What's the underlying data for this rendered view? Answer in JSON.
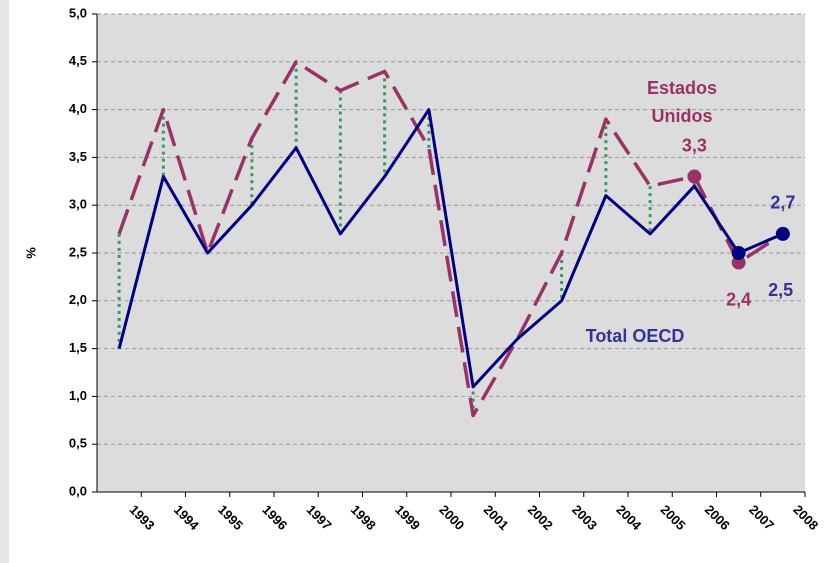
{
  "chart_data": {
    "type": "line",
    "y_label": "%",
    "categories": [
      "1993",
      "1994",
      "1995",
      "1996",
      "1997",
      "1998",
      "1999",
      "2000",
      "2001",
      "2002",
      "2003",
      "2004",
      "2005",
      "2006",
      "2007",
      "2008"
    ],
    "series": [
      {
        "name": "Estados Unidos",
        "color": "#993366",
        "dash": true,
        "values": [
          2.7,
          4.0,
          2.5,
          3.7,
          4.5,
          4.2,
          4.4,
          3.6,
          0.8,
          1.6,
          2.5,
          3.9,
          3.2,
          3.3,
          2.4,
          2.7
        ],
        "value_labels": [
          null,
          null,
          null,
          null,
          null,
          null,
          null,
          null,
          null,
          null,
          null,
          null,
          null,
          "3,3",
          "2,4",
          null
        ]
      },
      {
        "name": "Total OECD",
        "color": "#000080",
        "dash": false,
        "values": [
          1.5,
          3.3,
          2.5,
          3.0,
          3.6,
          2.7,
          3.3,
          4.0,
          1.1,
          1.6,
          2.0,
          3.1,
          2.7,
          3.2,
          2.5,
          2.7
        ],
        "value_labels": [
          null,
          null,
          null,
          null,
          null,
          null,
          null,
          null,
          null,
          null,
          null,
          null,
          null,
          null,
          "2,5",
          "2,7"
        ]
      }
    ],
    "ylim": [
      0,
      5
    ],
    "yticks": [
      {
        "value": 0,
        "label": "0,0"
      },
      {
        "value": 0.5,
        "label": "0,5"
      },
      {
        "value": 1,
        "label": "1,0"
      },
      {
        "value": 1.5,
        "label": "1,5"
      },
      {
        "value": 2,
        "label": "2,0"
      },
      {
        "value": 2.5,
        "label": "2,5"
      },
      {
        "value": 3,
        "label": "3,0"
      },
      {
        "value": 3.5,
        "label": "3,5"
      },
      {
        "value": 4,
        "label": "4,0"
      },
      {
        "value": 4.5,
        "label": "4,5"
      },
      {
        "value": 5,
        "label": "5,0"
      }
    ],
    "grid": true,
    "drop_lines": true,
    "drop_line_color": "#339966"
  }
}
